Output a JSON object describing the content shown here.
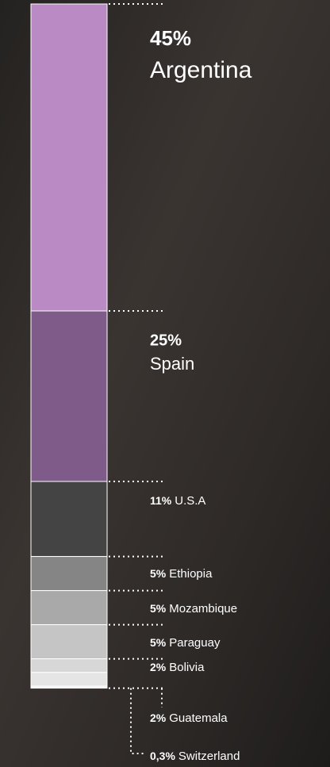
{
  "chart_data": {
    "type": "stacked-bar",
    "series": [
      {
        "name": "Argentina",
        "values": [
          45
        ],
        "value_labels": [
          "45%"
        ],
        "color": "#b98ac3"
      },
      {
        "name": "Spain",
        "values": [
          25
        ],
        "value_labels": [
          "25%"
        ],
        "color": "#7e5b88"
      },
      {
        "name": "U.S.A",
        "values": [
          11
        ],
        "value_labels": [
          "11%"
        ],
        "color": "#444444"
      },
      {
        "name": "Ethiopia",
        "values": [
          5
        ],
        "value_labels": [
          "5%"
        ],
        "color": "#858585"
      },
      {
        "name": "Mozambique",
        "values": [
          5
        ],
        "value_labels": [
          "5%"
        ],
        "color": "#a9a9a9"
      },
      {
        "name": "Paraguay",
        "values": [
          5
        ],
        "value_labels": [
          "5%"
        ],
        "color": "#c5c5c5"
      },
      {
        "name": "Bolivia",
        "values": [
          2
        ],
        "value_labels": [
          "2%"
        ],
        "color": "#d7d7d7"
      },
      {
        "name": "Guatemala",
        "values": [
          2
        ],
        "value_labels": [
          "2%"
        ],
        "color": "#e5e5e5"
      },
      {
        "name": "Switzerland",
        "values": [
          0.3
        ],
        "value_labels": [
          "0,3%"
        ],
        "color": "#f2f2f2"
      }
    ]
  }
}
